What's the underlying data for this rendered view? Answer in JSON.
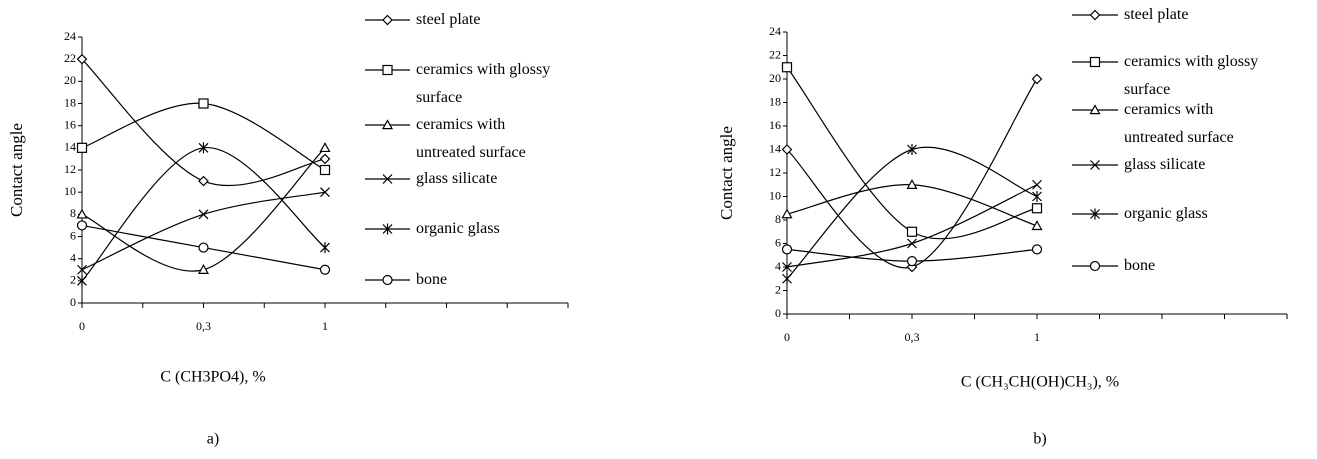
{
  "chart_data": [
    {
      "type": "line",
      "caption": "a)",
      "xlabel": "C (CH3PO4), %",
      "ylabel": "Contact angle",
      "categories": [
        "0",
        "0,3",
        "1",
        null,
        null
      ],
      "ylim": [
        0,
        24
      ],
      "yticks": [
        0,
        2,
        4,
        6,
        8,
        10,
        12,
        14,
        16,
        18,
        20,
        22,
        24
      ],
      "series": [
        {
          "name": "steel plate",
          "color": "#000000",
          "marker": "diamond",
          "values": [
            22,
            11,
            13,
            null,
            null
          ]
        },
        {
          "name": "ceramics with glossy surface",
          "color": "#000000",
          "marker": "square",
          "values": [
            14,
            18,
            12,
            null,
            null
          ]
        },
        {
          "name": "ceramics with untreated surface",
          "color": "#000000",
          "marker": "triangle",
          "values": [
            8,
            3,
            14,
            null,
            null
          ]
        },
        {
          "name": "glass silicate",
          "color": "#000000",
          "marker": "x",
          "values": [
            3,
            8,
            10,
            null,
            null
          ]
        },
        {
          "name": "organic glass",
          "color": "#000000",
          "marker": "asterisk",
          "values": [
            2,
            14,
            5,
            null,
            null
          ]
        },
        {
          "name": "bone",
          "color": "#000000",
          "marker": "circle",
          "values": [
            7,
            5,
            3,
            null,
            null
          ]
        }
      ]
    },
    {
      "type": "line",
      "caption": "b)",
      "xlabel": "C (CH₃CH(OH)CH₃), %",
      "ylabel": "Contact angle",
      "categories": [
        "0",
        "0,3",
        "1",
        null,
        null
      ],
      "ylim": [
        0,
        24
      ],
      "yticks": [
        0,
        2,
        4,
        6,
        8,
        10,
        12,
        14,
        16,
        18,
        20,
        22,
        24
      ],
      "series": [
        {
          "name": "steel plate",
          "color": "#000000",
          "marker": "diamond",
          "values": [
            14,
            4,
            20,
            null,
            null
          ]
        },
        {
          "name": "ceramics with glossy surface",
          "color": "#000000",
          "marker": "square",
          "values": [
            21,
            7,
            9,
            null,
            null
          ]
        },
        {
          "name": "ceramics with untreated surface",
          "color": "#000000",
          "marker": "triangle",
          "values": [
            8.5,
            11,
            7.5,
            null,
            null
          ]
        },
        {
          "name": "glass silicate",
          "color": "#000000",
          "marker": "x",
          "values": [
            4,
            6,
            11,
            null,
            null
          ]
        },
        {
          "name": "organic glass",
          "color": "#000000",
          "marker": "asterisk",
          "values": [
            3,
            14,
            10,
            null,
            null
          ]
        },
        {
          "name": "bone",
          "color": "#000000",
          "marker": "circle",
          "values": [
            5.5,
            4.5,
            5.5,
            null,
            null
          ]
        }
      ]
    }
  ]
}
